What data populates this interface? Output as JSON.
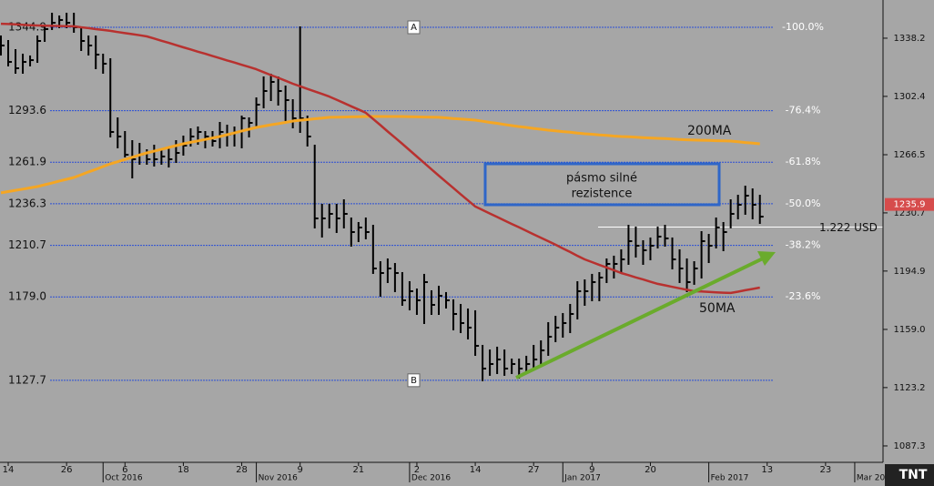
{
  "chart_data": {
    "type": "ohlc",
    "categories": [
      null,
      "14",
      null,
      null,
      null,
      null,
      null,
      null,
      null,
      "26",
      null,
      null,
      null,
      null,
      "Oct 2016",
      null,
      null,
      "6",
      null,
      null,
      null,
      null,
      null,
      null,
      null,
      "18",
      null,
      null,
      null,
      null,
      null,
      null,
      null,
      "28",
      null,
      "Nov 2016",
      null,
      null,
      null,
      null,
      null,
      "9",
      null,
      null,
      null,
      null,
      null,
      null,
      null,
      "21",
      null,
      null,
      null,
      null,
      null,
      null,
      "Dec 2016",
      "2",
      null,
      null,
      null,
      null,
      null,
      null,
      null,
      "14",
      null,
      null,
      null,
      null,
      null,
      null,
      null,
      "27",
      null,
      null,
      null,
      "Jan 2017",
      null,
      null,
      null,
      "9",
      null,
      null,
      null,
      null,
      null,
      null,
      null,
      "20",
      null,
      null,
      null,
      null,
      null,
      null,
      null,
      "Feb 2017",
      null,
      null,
      null,
      null,
      null,
      null,
      null,
      "13",
      null,
      null,
      null,
      null,
      null,
      null,
      null,
      "23",
      null,
      null,
      null,
      "Mar 20",
      null,
      null,
      null
    ],
    "high": [
      1339.3,
      1336.5,
      1330.9,
      1328.1,
      1327.0,
      1339.3,
      1346.0,
      1353.3,
      1351.6,
      1353.3,
      1353.3,
      1344.9,
      1339.3,
      1339.3,
      1328.1,
      1325.3,
      1288.9,
      1280.5,
      1274.9,
      1273.2,
      1269.3,
      1272.1,
      1269.3,
      1271.0,
      1274.9,
      1277.7,
      1282.2,
      1283.3,
      1280.5,
      1280.5,
      1286.1,
      1284.4,
      1283.3,
      1290.0,
      1288.9,
      1301.2,
      1314.1,
      1315.8,
      1314.1,
      1308.5,
      1300.1,
      1344.9,
      1290.0,
      1272.1,
      1235.7,
      1235.7,
      1235.7,
      1238.5,
      1227.3,
      1224.5,
      1227.3,
      1222.8,
      1200.4,
      1202.1,
      1199.3,
      1193.7,
      1188.1,
      1183.6,
      1192.6,
      1182.5,
      1185.3,
      1181.4,
      1176.9,
      1174.1,
      1171.3,
      1170.2,
      1148.9,
      1146.1,
      1147.8,
      1146.1,
      1140.5,
      1140.5,
      1142.2,
      1148.9,
      1151.7,
      1162.9,
      1166.8,
      1168.5,
      1174.1,
      1188.1,
      1189.2,
      1192.6,
      1193.7,
      1202.1,
      1203.8,
      1207.7,
      1222.8,
      1221.7,
      1213.3,
      1215.0,
      1221.7,
      1222.8,
      1215.0,
      1207.7,
      1202.1,
      1200.4,
      1218.9,
      1217.2,
      1227.3,
      1224.5,
      1238.5,
      1241.3,
      1246.9,
      1245.2,
      1241.3,
      null,
      null,
      null,
      null,
      null,
      null,
      null,
      null,
      null,
      null,
      null,
      null,
      null,
      null,
      null,
      null
    ],
    "low": [
      1328.1,
      1321.4,
      1316.9,
      1316.9,
      1321.4,
      1323.6,
      1336.5,
      1343.8,
      1344.9,
      1344.9,
      1342.1,
      1330.9,
      1328.1,
      1319.7,
      1316.9,
      1277.7,
      1271.0,
      1265.4,
      1252.5,
      1260.9,
      1260.9,
      1259.8,
      1260.9,
      1259.2,
      1262.0,
      1266.5,
      1272.1,
      1273.2,
      1271.0,
      1272.1,
      1271.0,
      1272.1,
      1272.1,
      1271.0,
      1277.7,
      1283.3,
      1295.6,
      1300.1,
      1297.3,
      1287.8,
      1283.3,
      1280.5,
      1272.1,
      1221.7,
      1216.1,
      1221.7,
      1218.9,
      1221.7,
      1210.5,
      1213.3,
      1215.0,
      1193.7,
      1179.7,
      1188.1,
      1182.5,
      1174.1,
      1171.3,
      1168.5,
      1162.9,
      1168.5,
      1168.5,
      1172.4,
      1159.0,
      1157.3,
      1153.4,
      1143.3,
      1127.7,
      1131.0,
      1132.1,
      1131.0,
      1132.1,
      1129.3,
      1132.1,
      1134.9,
      1137.7,
      1143.3,
      1151.7,
      1154.5,
      1157.3,
      1165.7,
      1174.1,
      1176.9,
      1176.9,
      1188.1,
      1190.9,
      1193.7,
      1199.3,
      1203.8,
      1199.3,
      1202.1,
      1209.4,
      1210.5,
      1196.5,
      1188.1,
      1182.5,
      1187.0,
      1190.9,
      1200.4,
      1209.4,
      1207.7,
      1221.7,
      1227.3,
      1230.1,
      1227.3,
      1224.5,
      null,
      null,
      null,
      null,
      null,
      null,
      null,
      null,
      null,
      null,
      null,
      null,
      null,
      null,
      null,
      null
    ],
    "close": [
      1333.7,
      1323.6,
      1319.7,
      1323.6,
      1324.7,
      1336.5,
      1343.8,
      1347.7,
      1349.4,
      1347.7,
      1344.9,
      1336.5,
      1333.7,
      1328.1,
      1322.5,
      1280.5,
      1277.7,
      1266.5,
      1263.7,
      1266.5,
      1263.7,
      1263.7,
      1265.4,
      1263.7,
      1267.6,
      1272.1,
      1277.7,
      1280.5,
      1277.7,
      1274.9,
      1280.5,
      1278.8,
      1280.5,
      1288.9,
      1286.1,
      1297.3,
      1305.7,
      1311.3,
      1305.7,
      1300.1,
      1288.9,
      1288.9,
      1277.7,
      1227.3,
      1227.3,
      1230.1,
      1227.3,
      1230.1,
      1218.9,
      1221.7,
      1218.9,
      1196.5,
      1193.7,
      1196.5,
      1193.7,
      1176.9,
      1182.5,
      1176.9,
      1188.1,
      1174.1,
      1179.7,
      1176.9,
      1168.5,
      1162.9,
      1160.1,
      1148.9,
      1134.9,
      1137.7,
      1140.5,
      1134.9,
      1137.7,
      1134.9,
      1137.7,
      1140.5,
      1146.1,
      1154.5,
      1160.1,
      1162.9,
      1168.5,
      1182.5,
      1182.5,
      1188.1,
      1190.9,
      1199.3,
      1199.3,
      1202.1,
      1213.3,
      1210.5,
      1207.7,
      1210.5,
      1216.1,
      1215.0,
      1202.1,
      1196.5,
      1188.1,
      1196.5,
      1213.3,
      1210.5,
      1221.7,
      1218.9,
      1230.1,
      1235.7,
      1241.3,
      1235.7,
      1228.4,
      null,
      null,
      null,
      null,
      null,
      null,
      null,
      null,
      null,
      null,
      null,
      null,
      null,
      null,
      null,
      null
    ],
    "color": "#000000",
    "series": [
      {
        "name": "200MA",
        "color": "#f5a623",
        "values": [
          1243.0,
          1243.8,
          1244.6,
          1245.3,
          1246.1,
          1246.9,
          1248.0,
          1249.1,
          1250.3,
          1251.4,
          1252.5,
          1254.2,
          1255.9,
          1257.5,
          1259.2,
          1260.9,
          1262.2,
          1263.6,
          1264.9,
          1266.3,
          1267.6,
          1268.7,
          1269.8,
          1271.0,
          1272.1,
          1273.2,
          1274.1,
          1275.0,
          1275.9,
          1276.8,
          1277.7,
          1278.8,
          1279.9,
          1281.1,
          1282.2,
          1283.3,
          1284.1,
          1284.9,
          1285.6,
          1286.4,
          1287.2,
          1287.7,
          1288.1,
          1288.6,
          1289.0,
          1289.5,
          1289.6,
          1289.7,
          1289.8,
          1289.9,
          1290.0,
          1290.0,
          1290.0,
          1290.0,
          1290.0,
          1290.0,
          1289.9,
          1289.8,
          1289.7,
          1289.6,
          1289.5,
          1289.2,
          1288.8,
          1288.5,
          1288.1,
          1287.8,
          1287.1,
          1286.4,
          1285.8,
          1285.1,
          1284.4,
          1283.8,
          1283.3,
          1282.7,
          1282.2,
          1281.6,
          1281.2,
          1280.7,
          1280.3,
          1279.8,
          1279.4,
          1279.1,
          1278.7,
          1278.4,
          1278.0,
          1277.7,
          1277.5,
          1277.3,
          1277.0,
          1276.8,
          1276.6,
          1276.4,
          1276.2,
          1275.9,
          1275.7,
          1275.5,
          1275.4,
          1275.3,
          1275.1,
          1275.0,
          1274.9,
          1274.5,
          1274.0,
          1273.6,
          1273.2,
          null,
          null,
          null,
          null,
          null,
          null,
          null,
          null,
          null,
          null,
          null,
          null,
          null,
          null,
          null,
          null
        ]
      },
      {
        "name": "50MA",
        "color": "#b8312f",
        "values": [
          1347.1,
          1346.9,
          1346.7,
          1346.4,
          1346.2,
          1346.0,
          1345.9,
          1345.8,
          1345.7,
          1345.6,
          1345.5,
          1344.9,
          1344.4,
          1343.8,
          1343.3,
          1342.7,
          1342.0,
          1341.3,
          1340.7,
          1340.0,
          1339.3,
          1338.0,
          1336.6,
          1335.3,
          1333.9,
          1332.6,
          1331.3,
          1329.9,
          1328.6,
          1327.2,
          1325.9,
          1324.5,
          1323.2,
          1321.8,
          1320.5,
          1319.1,
          1317.3,
          1315.5,
          1313.8,
          1312.0,
          1310.2,
          1308.6,
          1307.0,
          1305.5,
          1303.9,
          1302.3,
          1300.3,
          1298.3,
          1296.3,
          1294.3,
          1292.3,
          1288.5,
          1284.7,
          1280.8,
          1277.0,
          1273.2,
          1269.3,
          1265.4,
          1261.4,
          1257.5,
          1253.6,
          1249.8,
          1246.0,
          1242.2,
          1238.4,
          1234.6,
          1232.5,
          1230.3,
          1228.2,
          1226.0,
          1223.9,
          1221.8,
          1219.7,
          1217.5,
          1215.4,
          1213.3,
          1211.1,
          1208.8,
          1206.6,
          1204.3,
          1202.1,
          1200.4,
          1198.7,
          1197.1,
          1195.4,
          1193.7,
          1192.4,
          1191.0,
          1189.7,
          1188.3,
          1187.0,
          1186.1,
          1185.2,
          1184.3,
          1183.4,
          1182.5,
          1182.3,
          1182.1,
          1181.8,
          1181.6,
          1181.4,
          1182.2,
          1183.1,
          1183.9,
          1184.7,
          null,
          null,
          null,
          null,
          null,
          null,
          null,
          null,
          null,
          null,
          null,
          null,
          null,
          null,
          null,
          null
        ]
      }
    ],
    "ylim": [
      1077.2,
      1361.7
    ],
    "yticks": [
      1338.2,
      1302.4,
      1266.5,
      1230.7,
      1194.9,
      {
        "value": 1159,
        "label": "1159.0"
      },
      1123.2,
      1087.3
    ],
    "fib_levels": [
      {
        "value": 1344.9,
        "pct": "-100.0%",
        "point": "A"
      },
      {
        "value": 1293.6,
        "pct": "-76.4%"
      },
      {
        "value": 1261.9,
        "pct": "-61.8%"
      },
      {
        "value": 1236.3,
        "pct": "-50.0%"
      },
      {
        "value": 1210.7,
        "pct": "-38.2%"
      },
      {
        "value": 1179,
        "label": "1179.0",
        "pct": "-23.6%"
      },
      {
        "value": 1127.7,
        "point": "B"
      }
    ],
    "fib_color": "#2b4fd6",
    "price_line": {
      "value": 1222,
      "label": "1.222 USD"
    },
    "last_price": {
      "value": 1235.9
    },
    "annotation": [
      "pásmo silné",
      "rezistence"
    ],
    "logo": "TNT"
  }
}
